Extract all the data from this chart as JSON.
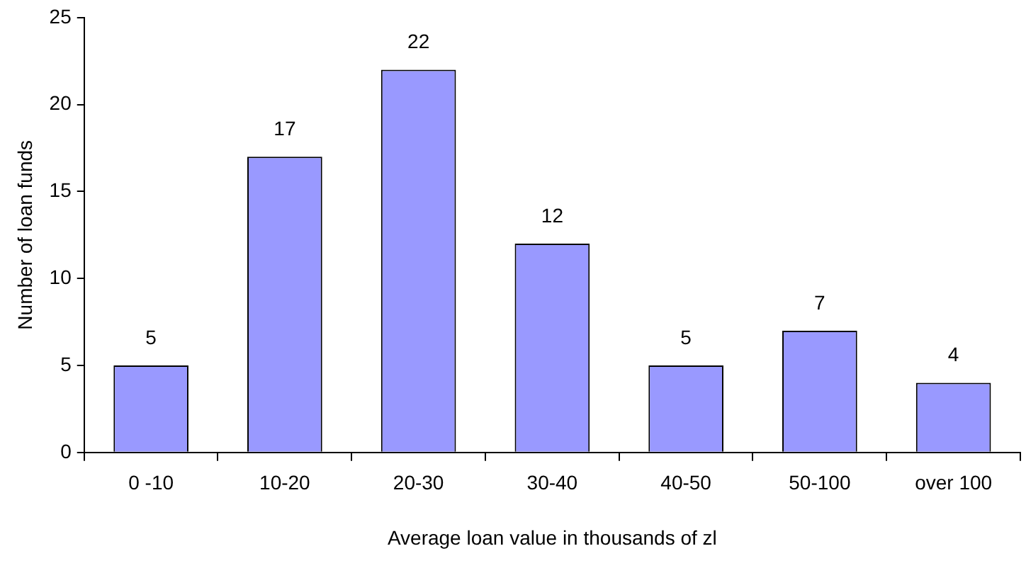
{
  "chart_data": {
    "type": "bar",
    "xlabel": "Average loan value in thousands of zl",
    "ylabel": "Number of loan funds",
    "categories": [
      "0 -10",
      "10-20",
      "20-30",
      "30-40",
      "40-50",
      "50-100",
      "over 100"
    ],
    "values": [
      5,
      17,
      22,
      12,
      5,
      7,
      4
    ],
    "color": "#9999ff",
    "ylim": [
      0,
      25
    ],
    "yticks": [
      0,
      5,
      10,
      15,
      20,
      25
    ],
    "data_labels": true,
    "legend": false
  }
}
